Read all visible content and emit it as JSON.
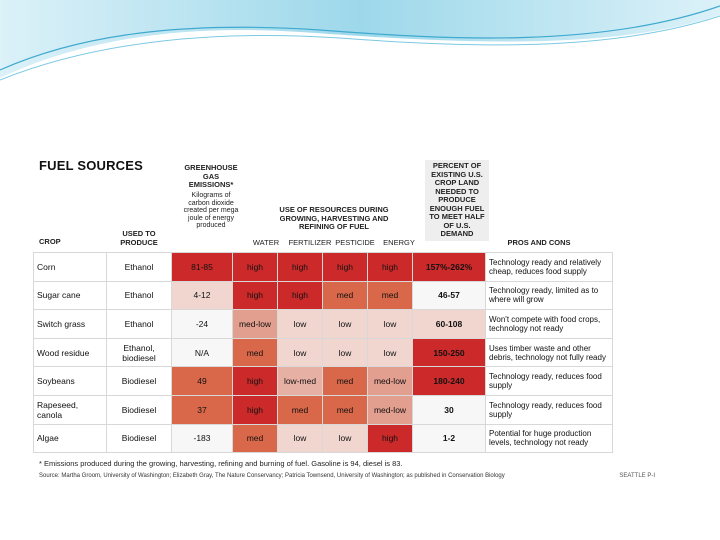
{
  "title": "FUEL SOURCES",
  "headers": {
    "crop": "CROP",
    "used": "USED TO PRODUCE",
    "ghg": "GREENHOUSE GAS EMISSIONS*",
    "ghg_sub": "Kilograms of carbon dioxide created per mega joule of energy produced",
    "resources": "USE OF RESOURCES DURING GROWING, HARVESTING AND REFINING OF FUEL",
    "water": "WATER",
    "fertilizer": "FERTILIZER",
    "pesticide": "PESTICIDE",
    "energy": "ENERGY",
    "percent": "PERCENT OF EXISTING U.S. CROP LAND NEEDED TO PRODUCE ENOUGH FUEL TO MEET HALF OF U.S. DEMAND",
    "pros": "PROS AND CONS"
  },
  "rows": [
    {
      "crop": "Corn",
      "used": "Ethanol",
      "ghg": "81-85",
      "water": "high",
      "fert": "high",
      "pest": "high",
      "energy": "high",
      "pct": "157%-262%",
      "pros": "Technology ready and relatively cheap, reduces food supply"
    },
    {
      "crop": "Sugar cane",
      "used": "Ethanol",
      "ghg": "4-12",
      "water": "high",
      "fert": "high",
      "pest": "med",
      "energy": "med",
      "pct": "46-57",
      "pros": "Technology ready, limited as to where will grow"
    },
    {
      "crop": "Switch grass",
      "used": "Ethanol",
      "ghg": "-24",
      "water": "med-low",
      "fert": "low",
      "pest": "low",
      "energy": "low",
      "pct": "60-108",
      "pros": "Won't compete with food crops, technology not ready"
    },
    {
      "crop": "Wood residue",
      "used": "Ethanol, biodiesel",
      "ghg": "N/A",
      "water": "med",
      "fert": "low",
      "pest": "low",
      "energy": "low",
      "pct": "150-250",
      "pros": "Uses timber waste and other debris, technology not fully ready"
    },
    {
      "crop": "Soybeans",
      "used": "Biodiesel",
      "ghg": "49",
      "water": "high",
      "fert": "low-med",
      "pest": "med",
      "energy": "med-low",
      "pct": "180-240",
      "pros": "Technology ready, reduces food supply"
    },
    {
      "crop": "Rapeseed, canola",
      "used": "Biodiesel",
      "ghg": "37",
      "water": "high",
      "fert": "med",
      "pest": "med",
      "energy": "med-low",
      "pct": "30",
      "pros": "Technology ready, reduces food supply"
    },
    {
      "crop": "Algae",
      "used": "Biodiesel",
      "ghg": "-183",
      "water": "med",
      "fert": "low",
      "pest": "low",
      "energy": "high",
      "pct": "1-2",
      "pros": "Potential for huge production levels, technology not ready"
    }
  ],
  "footnote": "* Emissions produced during the growing, harvesting, refining and burning of fuel. Gasoline is 94, diesel is 83.",
  "source": "Source: Martha Groom, University of Washington; Elizabeth Gray, The Nature Conservancy; Patricia Townsend, University of Washington; as published in Conservation Biology",
  "credit": "SEATTLE P-I",
  "colors": {
    "high": "#cc2a2a",
    "med": "#d9684a",
    "low": "#f1d6d0",
    "accent": "#4db8d9"
  }
}
